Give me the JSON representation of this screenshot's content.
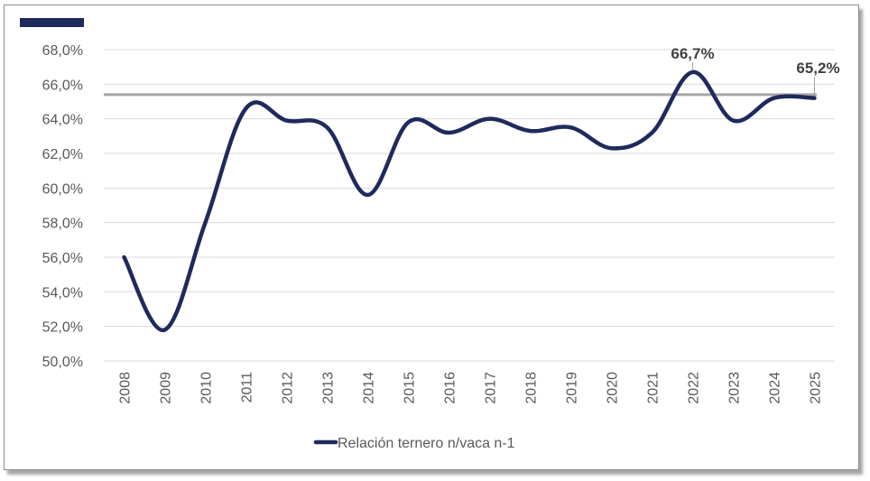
{
  "chart_data": {
    "type": "line",
    "title": "",
    "xlabel": "",
    "ylabel": "",
    "categories": [
      "2008",
      "2009",
      "2010",
      "2011",
      "2012",
      "2013",
      "2014",
      "2015",
      "2016",
      "2017",
      "2018",
      "2019",
      "2020",
      "2021",
      "2022",
      "2023",
      "2024",
      "2025"
    ],
    "series": [
      {
        "name": "Relación ternero n/vaca n-1",
        "color": "#1f2a5c",
        "values": [
          56.0,
          51.8,
          58.0,
          64.6,
          63.9,
          63.5,
          59.6,
          63.8,
          63.2,
          64.0,
          63.3,
          63.5,
          62.3,
          63.2,
          66.7,
          63.9,
          65.2,
          65.2
        ]
      }
    ],
    "ylim": [
      50.0,
      68.0
    ],
    "yticks": [
      "50,0%",
      "52,0%",
      "54,0%",
      "56,0%",
      "58,0%",
      "60,0%",
      "62,0%",
      "64,0%",
      "66,0%",
      "68,0%"
    ],
    "reference_line": {
      "value": 65.4,
      "color": "#a6a6a6"
    },
    "data_labels": [
      {
        "category": "2022",
        "text": "66,7%"
      },
      {
        "category": "2025",
        "text": "65,2%"
      }
    ],
    "grid": true,
    "legend_position": "bottom",
    "accent_color": "#1f2a5c"
  }
}
